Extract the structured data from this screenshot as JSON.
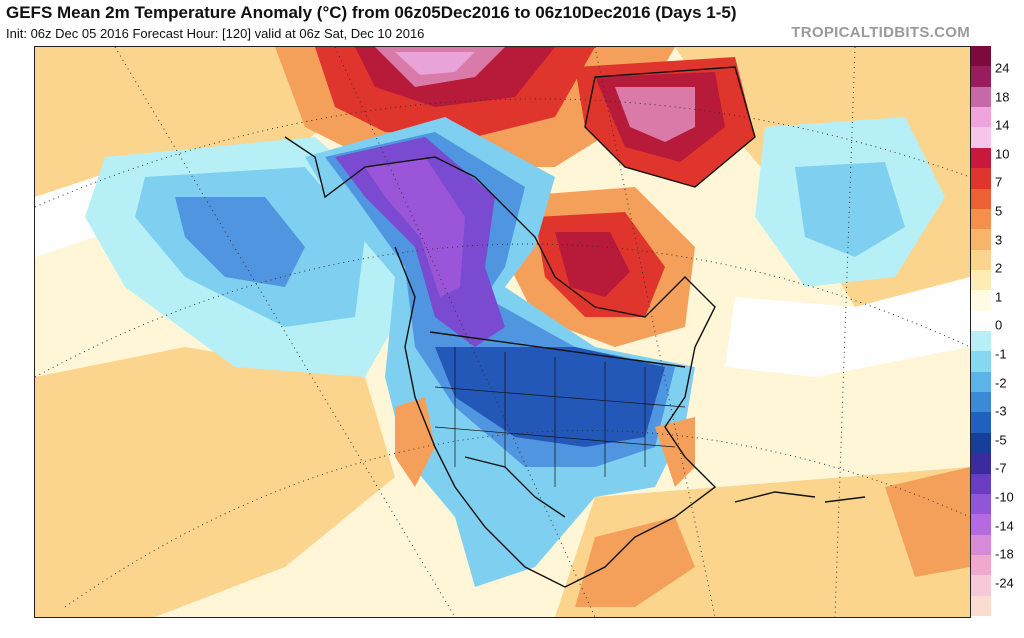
{
  "header": {
    "title": "GEFS Mean 2m Temperature Anomaly (°C) from 06z05Dec2016 to 06z10Dec2016 (Days 1-5)",
    "subtitle": "Init: 06z Dec 05 2016   Forecast Hour: [120]   valid at 06z Sat, Dec 10 2016",
    "brand": "TROPICALTIDBITS.COM"
  },
  "legend": {
    "labels": [
      "24",
      "18",
      "14",
      "10",
      "7",
      "5",
      "3",
      "2",
      "1",
      "0",
      "-1",
      "-2",
      "-3",
      "-5",
      "-7",
      "-10",
      "-14",
      "-18",
      "-24"
    ],
    "colors": [
      "#7e0a3c",
      "#9b1b5f",
      "#c86aa7",
      "#f0a3dc",
      "#f6c5ea",
      "#c8193c",
      "#e0352c",
      "#ec6034",
      "#f58f4a",
      "#f8b56a",
      "#fbd58e",
      "#fdecb4",
      "#fffbe4",
      "#fefefe",
      "#b6f0f6",
      "#86d8f0",
      "#5ab4ea",
      "#3a8ad8",
      "#2060c0",
      "#173e9c",
      "#3a2ca0",
      "#6a3cc6",
      "#9254d8",
      "#b46ae0",
      "#d88ad8",
      "#f0a8cc",
      "#f6c8d8",
      "#fbdcd0"
    ]
  },
  "map_colors": {
    "ocean_neutral": "#fff6d8",
    "warm_light": "#fbd58e",
    "warm_orange": "#f5a05a",
    "warm_red": "#e0352c",
    "warm_dark": "#b81a3a",
    "warm_pink": "#d97aa8",
    "warm_lilac": "#e8a3d8",
    "cool_light": "#b6f0f6",
    "cool_mid": "#7fcff0",
    "cool_blue": "#4f95df",
    "cool_dark": "#2458b8",
    "cool_violet": "#7a4ad0",
    "cool_purple": "#9a55d8",
    "white": "#fefefe"
  }
}
